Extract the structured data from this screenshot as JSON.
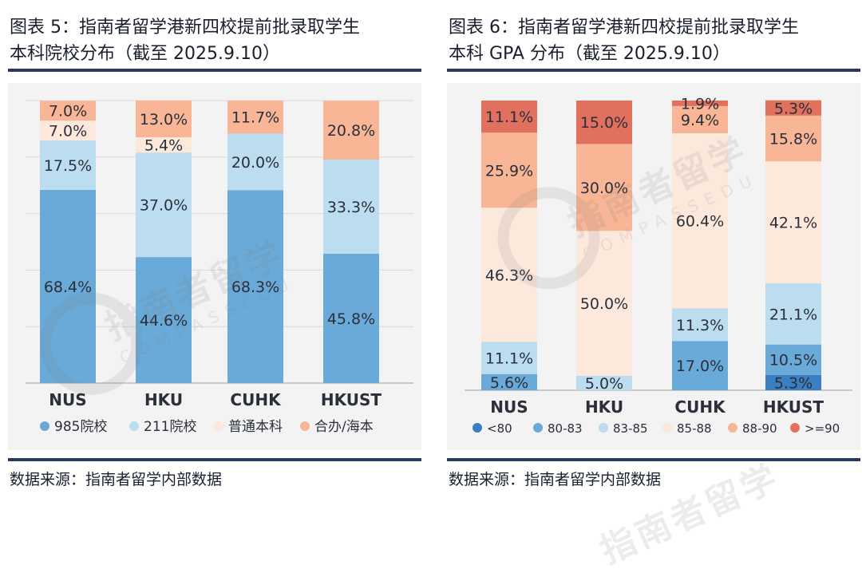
{
  "panels": [
    {
      "title_line1": "图表 5：指南者留学港新四校提前批录取学生",
      "title_line2": "本科院校分布（截至 2025.9.10）",
      "source": "数据来源：指南者留学内部数据"
    },
    {
      "title_line1": "图表 6：指南者留学港新四校提前批录取学生",
      "title_line2": "本科 GPA 分布（截至 2025.9.10）",
      "source": "数据来源：指南者留学内部数据"
    }
  ],
  "watermark": {
    "cn": "指南者留学",
    "en": "COMPASSEDU"
  },
  "chart_data": [
    {
      "type": "bar",
      "stacked": true,
      "categories": [
        "NUS",
        "HKU",
        "CUHK",
        "HKUST"
      ],
      "ylim": [
        0,
        100
      ],
      "grid": true,
      "legend_position": "bottom",
      "series": [
        {
          "name": "985院校",
          "color": "#6aaad8",
          "values": [
            68.4,
            44.6,
            68.3,
            45.8
          ],
          "labels": [
            "68.4%",
            "44.6%",
            "68.3%",
            "45.8%"
          ]
        },
        {
          "name": "211院校",
          "color": "#bcdcf0",
          "values": [
            17.5,
            37.0,
            20.0,
            33.3
          ],
          "labels": [
            "17.5%",
            "37.0%",
            "20.0%",
            "33.3%"
          ]
        },
        {
          "name": "普通本科",
          "color": "#fde8dc",
          "values": [
            7.0,
            5.4,
            0,
            0
          ],
          "labels": [
            "7.0%",
            "5.4%",
            "",
            ""
          ]
        },
        {
          "name": "合办/海本",
          "color": "#f8b696",
          "values": [
            7.0,
            13.0,
            11.7,
            20.8
          ],
          "labels": [
            "7.0%",
            "13.0%",
            "11.7%",
            "20.8%"
          ]
        }
      ]
    },
    {
      "type": "bar",
      "stacked": true,
      "categories": [
        "NUS",
        "HKU",
        "CUHK",
        "HKUST"
      ],
      "ylim": [
        0,
        100
      ],
      "grid": false,
      "legend_position": "bottom",
      "series": [
        {
          "name": "<80",
          "color": "#3a7fc2",
          "values": [
            0,
            0,
            0,
            5.3
          ],
          "labels": [
            "",
            "",
            "",
            "5.3%"
          ]
        },
        {
          "name": "80-83",
          "color": "#6aaad8",
          "values": [
            5.6,
            0,
            17.0,
            10.5
          ],
          "labels": [
            "5.6%",
            "",
            "17.0%",
            "10.5%"
          ]
        },
        {
          "name": "83-85",
          "color": "#bcdcf0",
          "values": [
            11.1,
            5.0,
            11.3,
            21.1
          ],
          "labels": [
            "11.1%",
            "5.0%",
            "11.3%",
            "21.1%"
          ]
        },
        {
          "name": "85-88",
          "color": "#fde8dc",
          "values": [
            46.3,
            50.0,
            60.4,
            42.1
          ],
          "labels": [
            "46.3%",
            "50.0%",
            "60.4%",
            "42.1%"
          ]
        },
        {
          "name": "88-90",
          "color": "#f8b696",
          "values": [
            25.9,
            30.0,
            9.4,
            15.8
          ],
          "labels": [
            "25.9%",
            "30.0%",
            "9.4%",
            "15.8%"
          ]
        },
        {
          "name": ">=90",
          "color": "#e2705e",
          "values": [
            11.1,
            15.0,
            1.9,
            5.3
          ],
          "labels": [
            "11.1%",
            "15.0%",
            "1.9%",
            "5.3%"
          ]
        }
      ]
    }
  ]
}
